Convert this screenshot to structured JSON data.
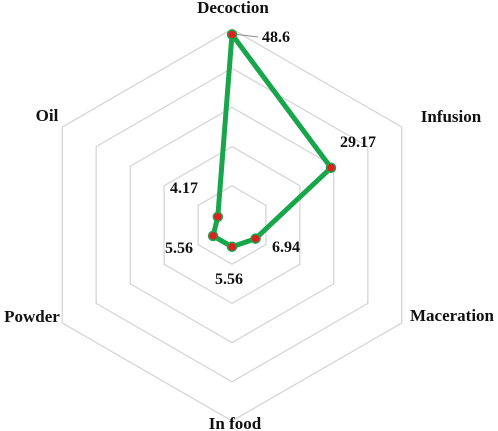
{
  "chart_data": {
    "type": "radar",
    "categories": [
      "Decoction",
      "Infusion",
      "Maceration",
      "In food",
      "Powder",
      "Oil"
    ],
    "values": [
      48.6,
      29.17,
      6.94,
      5.56,
      5.56,
      4.17
    ],
    "value_labels": [
      "48.6",
      "29.17",
      "6.94",
      "5.56",
      "5.56",
      "4.17"
    ],
    "range": [
      0,
      50
    ],
    "grid_rings": 5,
    "grid": true,
    "legend": false,
    "colors": {
      "line": "#17a64a",
      "marker_fill": "#e02020",
      "marker_stroke": "#17a64a",
      "grid": "#d6d6d6"
    }
  }
}
